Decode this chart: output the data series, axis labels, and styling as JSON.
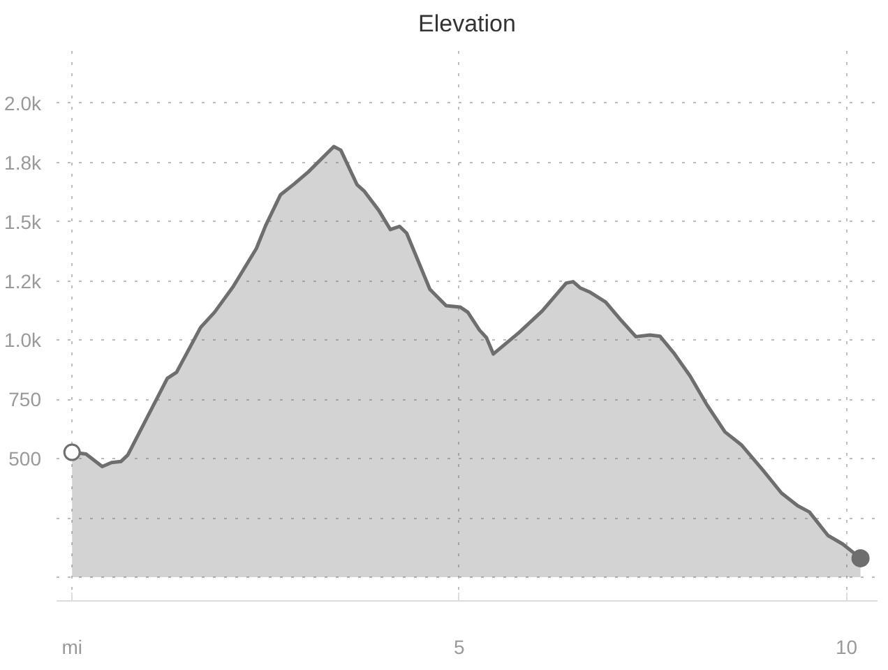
{
  "chart_data": {
    "type": "area",
    "title": "Elevation",
    "x": [
      0,
      0.18,
      0.39,
      0.51,
      0.63,
      0.72,
      1.23,
      1.35,
      1.66,
      1.84,
      2.08,
      2.38,
      2.5,
      2.69,
      2.87,
      3.05,
      3.38,
      3.47,
      3.68,
      3.77,
      3.96,
      4.11,
      4.23,
      4.32,
      4.62,
      4.83,
      5.01,
      5.11,
      5.26,
      5.35,
      5.44,
      5.77,
      6.07,
      6.38,
      6.47,
      6.56,
      6.68,
      6.89,
      7.1,
      7.28,
      7.46,
      7.59,
      7.77,
      7.98,
      8.19,
      8.43,
      8.64,
      8.92,
      9.16,
      9.37,
      9.52,
      9.76,
      9.95,
      10.18
    ],
    "series": [
      {
        "color": "#6e6e6e",
        "values": [
          527,
          520,
          467,
          484,
          488,
          516,
          839,
          865,
          1054,
          1118,
          1226,
          1387,
          1484,
          1613,
          1660,
          1710,
          1817,
          1802,
          1656,
          1630,
          1548,
          1467,
          1480,
          1452,
          1215,
          1146,
          1140,
          1118,
          1043,
          1011,
          942,
          1032,
          1123,
          1241,
          1247,
          1221,
          1204,
          1161,
          1080,
          1015,
          1022,
          1017,
          946,
          849,
          731,
          613,
          559,
          452,
          355,
          301,
          275,
          176,
          140,
          80
        ]
      }
    ],
    "xlim": [
      -0.2,
      10.4
    ],
    "xticks": [
      {
        "value": 0,
        "label": "mi"
      },
      5,
      10
    ],
    "ylim": [
      -100,
      2250
    ],
    "yticks": [
      {
        "value": 0,
        "label": null
      },
      {
        "value": 250,
        "label": null
      },
      500,
      750,
      {
        "value": 1000,
        "label": "1.0k"
      },
      {
        "value": 1250,
        "label": "1.2k"
      },
      {
        "value": 1500,
        "label": "1.5k"
      },
      {
        "value": 1750,
        "label": "1.8k"
      },
      {
        "value": 2000,
        "label": "2.0k"
      }
    ],
    "grid": true,
    "line_style": "solid"
  }
}
